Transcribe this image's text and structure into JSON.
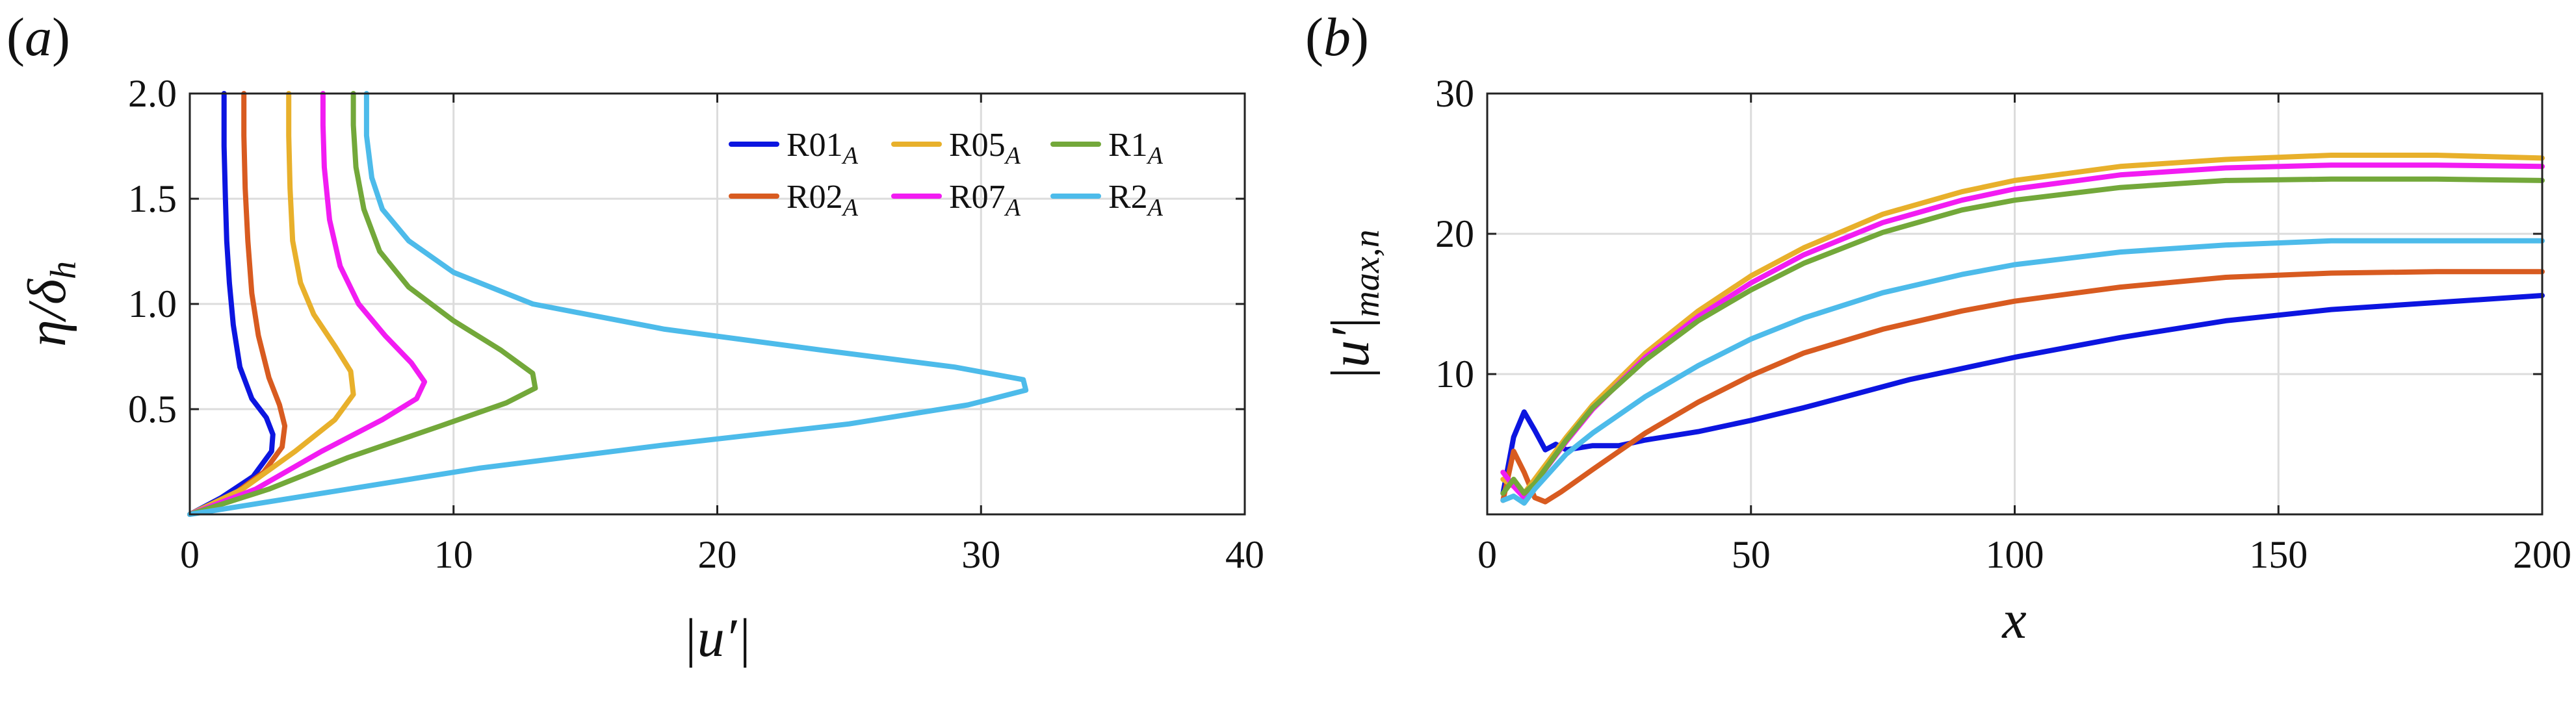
{
  "chart_data": [
    {
      "panel": "(a)",
      "type": "line",
      "xlabel": "|u′|",
      "ylabel": "η/δ_h",
      "xlim": [
        0,
        40
      ],
      "ylim": [
        0,
        2.0
      ],
      "x_ticks": [
        "0",
        "10",
        "20",
        "30",
        "40"
      ],
      "y_ticks": [
        "0.5",
        "1.0",
        "1.5",
        "2.0"
      ],
      "grid": true,
      "legend": "top-right",
      "series": [
        {
          "name": "R01",
          "sub": "A",
          "color": "#0c15e0",
          "points": [
            [
              0,
              0
            ],
            [
              1.2,
              0.08
            ],
            [
              2.4,
              0.18
            ],
            [
              3.1,
              0.3
            ],
            [
              3.15,
              0.38
            ],
            [
              2.9,
              0.46
            ],
            [
              2.35,
              0.55
            ],
            [
              1.9,
              0.7
            ],
            [
              1.65,
              0.9
            ],
            [
              1.5,
              1.1
            ],
            [
              1.4,
              1.3
            ],
            [
              1.35,
              1.5
            ],
            [
              1.3,
              1.75
            ],
            [
              1.3,
              2.0
            ]
          ]
        },
        {
          "name": "R02",
          "sub": "A",
          "color": "#d85b20",
          "points": [
            [
              0,
              0
            ],
            [
              1.5,
              0.08
            ],
            [
              2.8,
              0.2
            ],
            [
              3.5,
              0.32
            ],
            [
              3.6,
              0.42
            ],
            [
              3.4,
              0.52
            ],
            [
              3.0,
              0.65
            ],
            [
              2.6,
              0.85
            ],
            [
              2.35,
              1.05
            ],
            [
              2.2,
              1.3
            ],
            [
              2.1,
              1.55
            ],
            [
              2.05,
              1.8
            ],
            [
              2.05,
              2.0
            ]
          ]
        },
        {
          "name": "R05",
          "sub": "A",
          "color": "#e8b02b",
          "points": [
            [
              0,
              0
            ],
            [
              2.0,
              0.12
            ],
            [
              4.0,
              0.3
            ],
            [
              5.5,
              0.45
            ],
            [
              6.2,
              0.57
            ],
            [
              6.1,
              0.68
            ],
            [
              5.5,
              0.8
            ],
            [
              4.7,
              0.95
            ],
            [
              4.2,
              1.1
            ],
            [
              3.9,
              1.3
            ],
            [
              3.8,
              1.55
            ],
            [
              3.75,
              1.8
            ],
            [
              3.75,
              2.0
            ]
          ]
        },
        {
          "name": "R07",
          "sub": "A",
          "color": "#f21cf2",
          "points": [
            [
              0,
              0
            ],
            [
              2.5,
              0.12
            ],
            [
              5.0,
              0.3
            ],
            [
              7.3,
              0.45
            ],
            [
              8.6,
              0.55
            ],
            [
              8.9,
              0.63
            ],
            [
              8.4,
              0.72
            ],
            [
              7.4,
              0.85
            ],
            [
              6.4,
              1.0
            ],
            [
              5.7,
              1.18
            ],
            [
              5.3,
              1.4
            ],
            [
              5.1,
              1.65
            ],
            [
              5.05,
              1.85
            ],
            [
              5.05,
              2.0
            ]
          ]
        },
        {
          "name": "R1",
          "sub": "A",
          "color": "#73a83a",
          "points": [
            [
              0,
              0
            ],
            [
              3.0,
              0.12
            ],
            [
              6.0,
              0.27
            ],
            [
              9.5,
              0.42
            ],
            [
              12.0,
              0.53
            ],
            [
              13.1,
              0.6
            ],
            [
              13.0,
              0.67
            ],
            [
              11.8,
              0.78
            ],
            [
              10.0,
              0.92
            ],
            [
              8.3,
              1.08
            ],
            [
              7.2,
              1.25
            ],
            [
              6.6,
              1.45
            ],
            [
              6.3,
              1.65
            ],
            [
              6.2,
              1.85
            ],
            [
              6.2,
              2.0
            ]
          ]
        },
        {
          "name": "R2",
          "sub": "A",
          "color": "#4dbbea",
          "points": [
            [
              0,
              0
            ],
            [
              5.0,
              0.1
            ],
            [
              11.0,
              0.22
            ],
            [
              18.0,
              0.33
            ],
            [
              25.0,
              0.43
            ],
            [
              29.5,
              0.52
            ],
            [
              31.7,
              0.59
            ],
            [
              31.6,
              0.64
            ],
            [
              29.0,
              0.7
            ],
            [
              24.0,
              0.78
            ],
            [
              18.0,
              0.88
            ],
            [
              13.0,
              1.0
            ],
            [
              10.0,
              1.15
            ],
            [
              8.3,
              1.3
            ],
            [
              7.3,
              1.45
            ],
            [
              6.9,
              1.6
            ],
            [
              6.7,
              1.8
            ],
            [
              6.7,
              2.0
            ]
          ]
        }
      ]
    },
    {
      "panel": "(b)",
      "type": "line",
      "xlabel": "x",
      "ylabel": "|u′|_{max,n}",
      "xlim": [
        0,
        200
      ],
      "ylim": [
        0,
        30
      ],
      "x_ticks": [
        "0",
        "50",
        "100",
        "150",
        "200"
      ],
      "y_ticks": [
        "10",
        "20",
        "30"
      ],
      "grid": true,
      "series": [
        {
          "name": "R01",
          "sub": "A",
          "color": "#0c15e0",
          "points": [
            [
              3,
              1.5
            ],
            [
              5,
              5.5
            ],
            [
              7,
              7.3
            ],
            [
              9,
              6.0
            ],
            [
              11,
              4.6
            ],
            [
              13,
              5.0
            ],
            [
              15,
              4.6
            ],
            [
              20,
              4.9
            ],
            [
              25,
              4.9
            ],
            [
              30,
              5.3
            ],
            [
              40,
              5.9
            ],
            [
              50,
              6.7
            ],
            [
              60,
              7.6
            ],
            [
              70,
              8.6
            ],
            [
              80,
              9.6
            ],
            [
              90,
              10.4
            ],
            [
              100,
              11.2
            ],
            [
              120,
              12.6
            ],
            [
              140,
              13.8
            ],
            [
              160,
              14.6
            ],
            [
              180,
              15.1
            ],
            [
              200,
              15.6
            ]
          ]
        },
        {
          "name": "R02",
          "sub": "A",
          "color": "#d85b20",
          "points": [
            [
              3,
              1.0
            ],
            [
              5,
              4.5
            ],
            [
              7,
              3.0
            ],
            [
              9,
              1.2
            ],
            [
              11,
              0.9
            ],
            [
              14,
              1.6
            ],
            [
              20,
              3.2
            ],
            [
              30,
              5.8
            ],
            [
              40,
              8.0
            ],
            [
              50,
              9.9
            ],
            [
              60,
              11.5
            ],
            [
              75,
              13.2
            ],
            [
              90,
              14.5
            ],
            [
              100,
              15.2
            ],
            [
              120,
              16.2
            ],
            [
              140,
              16.9
            ],
            [
              160,
              17.2
            ],
            [
              180,
              17.3
            ],
            [
              200,
              17.3
            ]
          ]
        },
        {
          "name": "R05",
          "sub": "A",
          "color": "#e8b02b",
          "points": [
            [
              3,
              2.5
            ],
            [
              5,
              2.0
            ],
            [
              7,
              1.5
            ],
            [
              9,
              2.5
            ],
            [
              15,
              5.5
            ],
            [
              20,
              7.8
            ],
            [
              30,
              11.5
            ],
            [
              40,
              14.5
            ],
            [
              50,
              17.0
            ],
            [
              60,
              19.0
            ],
            [
              75,
              21.4
            ],
            [
              90,
              23.0
            ],
            [
              100,
              23.8
            ],
            [
              120,
              24.8
            ],
            [
              140,
              25.3
            ],
            [
              160,
              25.6
            ],
            [
              180,
              25.6
            ],
            [
              200,
              25.4
            ]
          ]
        },
        {
          "name": "R07",
          "sub": "A",
          "color": "#f21cf2",
          "points": [
            [
              3,
              3.0
            ],
            [
              5,
              2.0
            ],
            [
              7,
              1.2
            ],
            [
              9,
              2.2
            ],
            [
              15,
              5.2
            ],
            [
              20,
              7.5
            ],
            [
              30,
              11.2
            ],
            [
              40,
              14.1
            ],
            [
              50,
              16.5
            ],
            [
              60,
              18.5
            ],
            [
              75,
              20.8
            ],
            [
              90,
              22.4
            ],
            [
              100,
              23.2
            ],
            [
              120,
              24.2
            ],
            [
              140,
              24.7
            ],
            [
              160,
              24.9
            ],
            [
              180,
              24.9
            ],
            [
              200,
              24.8
            ]
          ]
        },
        {
          "name": "R1",
          "sub": "A",
          "color": "#73a83a",
          "points": [
            [
              3,
              1.5
            ],
            [
              5,
              2.5
            ],
            [
              7,
              1.5
            ],
            [
              9,
              2.2
            ],
            [
              15,
              5.3
            ],
            [
              20,
              7.6
            ],
            [
              30,
              11.0
            ],
            [
              40,
              13.8
            ],
            [
              50,
              16.0
            ],
            [
              60,
              17.9
            ],
            [
              75,
              20.1
            ],
            [
              90,
              21.7
            ],
            [
              100,
              22.4
            ],
            [
              120,
              23.3
            ],
            [
              140,
              23.8
            ],
            [
              160,
              23.9
            ],
            [
              180,
              23.9
            ],
            [
              200,
              23.8
            ]
          ]
        },
        {
          "name": "R2",
          "sub": "A",
          "color": "#4dbbea",
          "points": [
            [
              3,
              1.0
            ],
            [
              5,
              1.3
            ],
            [
              7,
              0.8
            ],
            [
              9,
              1.8
            ],
            [
              15,
              4.3
            ],
            [
              20,
              5.8
            ],
            [
              30,
              8.4
            ],
            [
              40,
              10.6
            ],
            [
              50,
              12.5
            ],
            [
              60,
              14.0
            ],
            [
              75,
              15.8
            ],
            [
              90,
              17.1
            ],
            [
              100,
              17.8
            ],
            [
              120,
              18.7
            ],
            [
              140,
              19.2
            ],
            [
              160,
              19.5
            ],
            [
              180,
              19.5
            ],
            [
              200,
              19.5
            ]
          ]
        }
      ]
    }
  ]
}
